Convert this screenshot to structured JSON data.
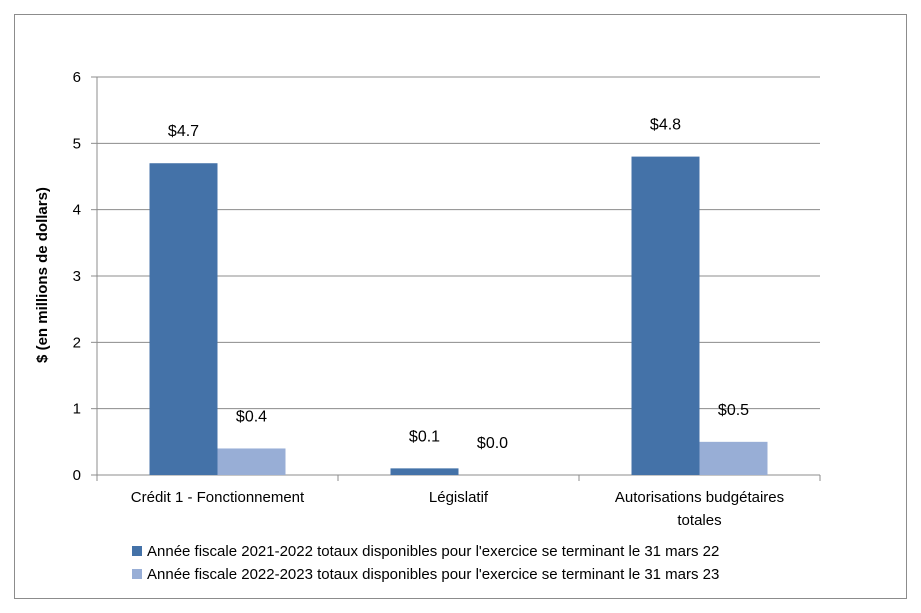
{
  "chart_data": {
    "type": "bar",
    "title": "",
    "xlabel": "",
    "ylabel": "$ (en millions de dollars)",
    "ylim": [
      0,
      6
    ],
    "yticks": [
      0,
      1,
      2,
      3,
      4,
      5,
      6
    ],
    "grid": true,
    "legend_position": "bottom",
    "categories": [
      [
        "Crédit 1 - Fonctionnement"
      ],
      [
        "Législatif"
      ],
      [
        "Autorisations budgétaires",
        "totales"
      ]
    ],
    "series": [
      {
        "name": "Année fiscale 2021-2022 totaux disponibles pour l'exercice se terminant le 31 mars 22",
        "color": "#4472a8",
        "values": [
          4.7,
          0.1,
          4.8
        ],
        "labels": [
          "$4.7",
          "$0.1",
          "$4.8"
        ]
      },
      {
        "name": "Année fiscale 2022-2023 totaux disponibles pour l'exercice se terminant le 31 mars 23",
        "color": "#98aed6",
        "values": [
          0.4,
          0.0,
          0.5
        ],
        "labels": [
          "$0.4",
          "$0.0",
          "$0.5"
        ]
      }
    ]
  }
}
